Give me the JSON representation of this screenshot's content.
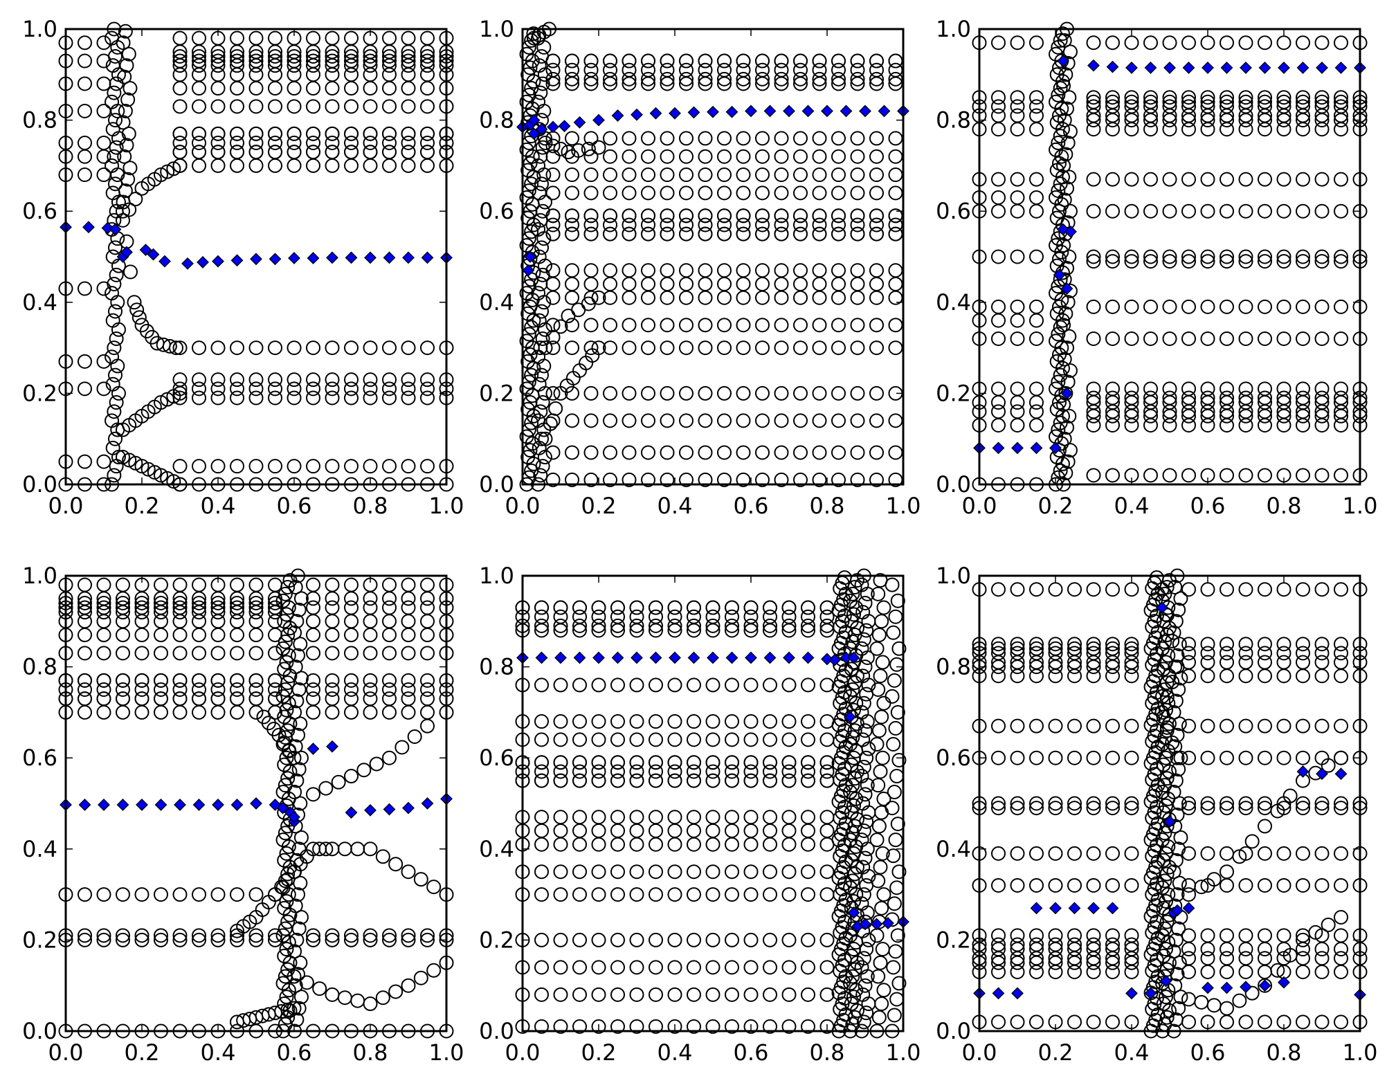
{
  "figure": {
    "layout": "2x3 grid of scatter plots"
  },
  "colors": {
    "circle_edge": "#000000",
    "circle_fill": "none",
    "diamond_fill": "#0000ee",
    "diamond_edge": "#000000"
  },
  "tick_labels": {
    "x": [
      "0.0",
      "0.2",
      "0.4",
      "0.6",
      "0.8",
      "1.0"
    ],
    "y": [
      "0.0",
      "0.2",
      "0.4",
      "0.6",
      "0.8",
      "1.0"
    ]
  },
  "chart_data": [
    {
      "type": "scatter",
      "xlim": [
        0,
        1
      ],
      "ylim": [
        0,
        1
      ],
      "x_ticks": [
        0,
        0.2,
        0.4,
        0.6,
        0.8,
        1.0
      ],
      "y_ticks": [
        0,
        0.2,
        0.4,
        0.6,
        0.8,
        1.0
      ],
      "grid": false,
      "circle_levels": [
        0.0,
        0.21,
        0.3,
        0.7,
        0.73,
        0.75,
        0.77,
        0.83,
        0.87,
        0.9,
        0.93,
        0.95,
        0.98
      ],
      "circle_x_start": 0.3,
      "circle_spread": [
        [
          0.0,
          0.04
        ],
        [
          0.21,
          0.02
        ],
        [
          0.75,
          0.02
        ],
        [
          0.93,
          0.01
        ]
      ],
      "circle_left_levels": [
        0.0,
        0.05,
        0.21,
        0.27,
        0.43,
        0.68,
        0.72,
        0.75,
        0.82,
        0.88,
        0.93,
        0.97
      ],
      "circle_left_x": [
        0.0,
        0.05,
        0.1
      ],
      "dense_columns": [
        {
          "x": 0.13,
          "y_from": 0.0,
          "y_to": 1.0,
          "step": 0.02
        },
        {
          "x": 0.16,
          "y_from": 0.62,
          "y_to": 1.0,
          "step": 0.025
        }
      ],
      "circle_arcs": [
        [
          [
            0.15,
            0.6
          ],
          [
            0.18,
            0.4
          ],
          [
            0.2,
            0.35
          ],
          [
            0.24,
            0.31
          ],
          [
            0.29,
            0.3
          ]
        ],
        [
          [
            0.15,
            0.58
          ],
          [
            0.2,
            0.65
          ],
          [
            0.25,
            0.68
          ],
          [
            0.3,
            0.7
          ]
        ],
        [
          [
            0.15,
            0.12
          ],
          [
            0.2,
            0.15
          ],
          [
            0.25,
            0.18
          ],
          [
            0.3,
            0.2
          ]
        ],
        [
          [
            0.15,
            0.06
          ],
          [
            0.2,
            0.04
          ],
          [
            0.25,
            0.02
          ],
          [
            0.3,
            0.0
          ]
        ]
      ],
      "diamond_x": [
        0.0,
        0.06,
        0.11,
        0.13,
        0.15,
        0.16,
        0.21,
        0.23,
        0.26,
        0.32,
        0.36,
        0.4,
        0.45,
        0.5,
        0.55,
        0.6,
        0.65,
        0.7,
        0.75,
        0.8,
        0.85,
        0.9,
        0.95,
        1.0
      ],
      "diamond_y": [
        0.565,
        0.565,
        0.563,
        0.56,
        0.5,
        0.51,
        0.515,
        0.505,
        0.49,
        0.485,
        0.488,
        0.49,
        0.492,
        0.495,
        0.495,
        0.497,
        0.497,
        0.498,
        0.498,
        0.498,
        0.498,
        0.498,
        0.498,
        0.498
      ]
    },
    {
      "type": "scatter",
      "xlim": [
        0,
        1
      ],
      "ylim": [
        0,
        1
      ],
      "x_ticks": [
        0,
        0.2,
        0.4,
        0.6,
        0.8,
        1.0
      ],
      "y_ticks": [
        0,
        0.2,
        0.4,
        0.6,
        0.8,
        1.0
      ],
      "grid": false,
      "circle_levels": [
        0.01,
        0.07,
        0.14,
        0.2,
        0.3,
        0.35,
        0.41,
        0.44,
        0.47,
        0.55,
        0.57,
        0.59,
        0.64,
        0.68,
        0.72,
        0.76,
        0.88,
        0.91,
        0.93
      ],
      "circle_x_start": 0.08,
      "circle_spread": [
        [
          0.57,
          0.02
        ],
        [
          0.91,
          0.02
        ]
      ],
      "circle_left_levels": [],
      "circle_left_x": [],
      "dense_columns": [
        {
          "x": 0.02,
          "y_from": 0.0,
          "y_to": 1.0,
          "step": 0.015
        },
        {
          "x": 0.05,
          "y_from": 0.0,
          "y_to": 0.98,
          "step": 0.02
        }
      ],
      "circle_arcs": [
        [
          [
            0.06,
            0.1
          ],
          [
            0.1,
            0.2
          ],
          [
            0.15,
            0.25
          ],
          [
            0.2,
            0.3
          ]
        ],
        [
          [
            0.06,
            0.3
          ],
          [
            0.12,
            0.37
          ],
          [
            0.2,
            0.41
          ]
        ],
        [
          [
            0.06,
            0.75
          ],
          [
            0.12,
            0.73
          ],
          [
            0.2,
            0.74
          ]
        ],
        [
          [
            0.03,
            0.98
          ],
          [
            0.07,
            1.0
          ]
        ]
      ],
      "diamond_x": [
        0.0,
        0.02,
        0.03,
        0.05,
        0.08,
        0.11,
        0.15,
        0.2,
        0.25,
        0.3,
        0.35,
        0.4,
        0.45,
        0.5,
        0.55,
        0.6,
        0.65,
        0.7,
        0.75,
        0.8,
        0.85,
        0.9,
        0.95,
        1.0,
        0.03,
        0.02,
        0.015
      ],
      "diamond_y": [
        0.785,
        0.79,
        0.8,
        0.78,
        0.785,
        0.787,
        0.795,
        0.8,
        0.81,
        0.812,
        0.815,
        0.815,
        0.817,
        0.818,
        0.818,
        0.82,
        0.82,
        0.82,
        0.82,
        0.82,
        0.82,
        0.82,
        0.82,
        0.82,
        0.77,
        0.5,
        0.47
      ]
    },
    {
      "type": "scatter",
      "xlim": [
        0,
        1
      ],
      "ylim": [
        0,
        1
      ],
      "x_ticks": [
        0,
        0.2,
        0.4,
        0.6,
        0.8,
        1.0
      ],
      "y_ticks": [
        0,
        0.2,
        0.4,
        0.6,
        0.8,
        1.0
      ],
      "grid": false,
      "circle_levels": [
        0.02,
        0.13,
        0.16,
        0.18,
        0.21,
        0.32,
        0.39,
        0.49,
        0.5,
        0.6,
        0.67,
        0.78,
        0.81,
        0.83,
        0.85,
        0.97
      ],
      "circle_x_start": 0.3,
      "circle_spread": [
        [
          0.17,
          0.02
        ],
        [
          0.82,
          0.02
        ]
      ],
      "circle_left_levels": [
        0.0,
        0.13,
        0.16,
        0.18,
        0.21,
        0.32,
        0.36,
        0.39,
        0.5,
        0.6,
        0.63,
        0.67,
        0.78,
        0.81,
        0.83,
        0.85,
        0.97
      ],
      "circle_left_x": [
        0.0,
        0.05,
        0.1,
        0.15
      ],
      "dense_columns": [
        {
          "x": 0.21,
          "y_from": 0.0,
          "y_to": 1.0,
          "step": 0.015
        },
        {
          "x": 0.23,
          "y_from": 0.0,
          "y_to": 1.0,
          "step": 0.025
        }
      ],
      "circle_arcs": [],
      "diamond_x": [
        0.0,
        0.05,
        0.1,
        0.15,
        0.2,
        0.22,
        0.22,
        0.23,
        0.21,
        0.24,
        0.23,
        0.3,
        0.35,
        0.4,
        0.45,
        0.5,
        0.55,
        0.6,
        0.65,
        0.7,
        0.75,
        0.8,
        0.85,
        0.9,
        0.95,
        1.0
      ],
      "diamond_y": [
        0.08,
        0.08,
        0.08,
        0.08,
        0.08,
        0.93,
        0.56,
        0.43,
        0.46,
        0.555,
        0.2,
        0.92,
        0.917,
        0.915,
        0.915,
        0.915,
        0.915,
        0.915,
        0.915,
        0.915,
        0.915,
        0.915,
        0.915,
        0.915,
        0.915,
        0.915
      ]
    },
    {
      "type": "scatter",
      "xlim": [
        0,
        1
      ],
      "ylim": [
        0,
        1
      ],
      "x_ticks": [
        0,
        0.2,
        0.4,
        0.6,
        0.8,
        1.0
      ],
      "y_ticks": [
        0,
        0.2,
        0.4,
        0.6,
        0.8,
        1.0
      ],
      "grid": false,
      "circle_levels": [
        0.0,
        0.2,
        0.21,
        0.3,
        0.7,
        0.73,
        0.75,
        0.77,
        0.83,
        0.87,
        0.9,
        0.93,
        0.95,
        0.98
      ],
      "circle_x_start": 0.0,
      "circle_x_end": 0.55,
      "circle_spread": [
        [
          0.75,
          0.02
        ],
        [
          0.93,
          0.01
        ]
      ],
      "circle_left_levels": [
        0.0,
        0.2,
        0.21,
        0.7,
        0.73,
        0.75,
        0.77,
        0.83,
        0.87,
        0.9,
        0.93,
        0.95,
        0.98
      ],
      "circle_left_x": [
        0.65,
        0.7,
        0.75,
        0.8,
        0.85,
        0.9,
        0.95,
        1.0
      ],
      "dense_columns": [
        {
          "x": 0.58,
          "y_from": 0.0,
          "y_to": 1.0,
          "step": 0.015
        },
        {
          "x": 0.61,
          "y_from": 0.0,
          "y_to": 1.0,
          "step": 0.025
        }
      ],
      "circle_arcs": [
        [
          [
            0.45,
            0.22
          ],
          [
            0.5,
            0.25
          ],
          [
            0.55,
            0.3
          ],
          [
            0.6,
            0.35
          ]
        ],
        [
          [
            0.45,
            0.02
          ],
          [
            0.5,
            0.03
          ],
          [
            0.55,
            0.04
          ],
          [
            0.6,
            0.05
          ]
        ],
        [
          [
            0.6,
            0.35
          ],
          [
            0.65,
            0.4
          ],
          [
            0.7,
            0.4
          ],
          [
            0.8,
            0.4
          ],
          [
            0.9,
            0.35
          ],
          [
            1.0,
            0.3
          ]
        ],
        [
          [
            0.6,
            0.12
          ],
          [
            0.7,
            0.08
          ],
          [
            0.8,
            0.06
          ],
          [
            0.9,
            0.1
          ],
          [
            1.0,
            0.15
          ]
        ],
        [
          [
            0.65,
            0.52
          ],
          [
            0.75,
            0.56
          ],
          [
            0.85,
            0.6
          ],
          [
            0.95,
            0.67
          ]
        ],
        [
          [
            0.52,
            0.69
          ],
          [
            0.56,
            0.65
          ],
          [
            0.6,
            0.6
          ]
        ]
      ],
      "diamond_x": [
        0.0,
        0.05,
        0.1,
        0.15,
        0.2,
        0.25,
        0.3,
        0.35,
        0.4,
        0.45,
        0.5,
        0.55,
        0.57,
        0.59,
        0.6,
        0.6,
        0.65,
        0.7,
        0.75,
        0.8,
        0.85,
        0.9,
        0.95,
        1.0
      ],
      "diamond_y": [
        0.497,
        0.497,
        0.497,
        0.497,
        0.497,
        0.497,
        0.497,
        0.497,
        0.497,
        0.497,
        0.5,
        0.497,
        0.49,
        0.48,
        0.46,
        0.47,
        0.62,
        0.625,
        0.48,
        0.485,
        0.487,
        0.49,
        0.5,
        0.51
      ]
    },
    {
      "type": "scatter",
      "xlim": [
        0,
        1
      ],
      "ylim": [
        0,
        1
      ],
      "x_ticks": [
        0,
        0.2,
        0.4,
        0.6,
        0.8,
        1.0
      ],
      "y_ticks": [
        0,
        0.2,
        0.4,
        0.6,
        0.8,
        1.0
      ],
      "grid": false,
      "circle_levels": [
        0.01,
        0.08,
        0.14,
        0.2,
        0.3,
        0.35,
        0.41,
        0.44,
        0.47,
        0.55,
        0.57,
        0.59,
        0.64,
        0.68,
        0.76,
        0.88,
        0.91,
        0.93
      ],
      "circle_x_start": 0.0,
      "circle_x_end": 0.8,
      "circle_spread": [
        [
          0.57,
          0.02
        ],
        [
          0.91,
          0.02
        ]
      ],
      "circle_left_levels": [],
      "circle_left_x": [],
      "dense_columns": [
        {
          "x": 0.84,
          "y_from": 0.0,
          "y_to": 1.0,
          "step": 0.012
        },
        {
          "x": 0.87,
          "y_from": 0.0,
          "y_to": 1.0,
          "step": 0.015
        },
        {
          "x": 0.9,
          "y_from": 0.0,
          "y_to": 1.0,
          "step": 0.02
        },
        {
          "x": 0.94,
          "y_from": 0.0,
          "y_to": 1.0,
          "step": 0.03
        },
        {
          "x": 0.98,
          "y_from": 0.0,
          "y_to": 1.0,
          "step": 0.035
        }
      ],
      "circle_arcs": [],
      "diamond_x": [
        0.0,
        0.05,
        0.1,
        0.15,
        0.2,
        0.25,
        0.3,
        0.35,
        0.4,
        0.45,
        0.5,
        0.55,
        0.6,
        0.65,
        0.7,
        0.75,
        0.8,
        0.82,
        0.85,
        0.87,
        0.86,
        0.87,
        0.88,
        0.9,
        0.93,
        0.96,
        1.0
      ],
      "diamond_y": [
        0.82,
        0.82,
        0.82,
        0.82,
        0.82,
        0.82,
        0.82,
        0.82,
        0.82,
        0.82,
        0.82,
        0.82,
        0.82,
        0.82,
        0.82,
        0.82,
        0.817,
        0.815,
        0.82,
        0.82,
        0.69,
        0.26,
        0.23,
        0.235,
        0.235,
        0.237,
        0.24
      ]
    },
    {
      "type": "scatter",
      "xlim": [
        0,
        1
      ],
      "ylim": [
        0,
        1
      ],
      "x_ticks": [
        0,
        0.2,
        0.4,
        0.6,
        0.8,
        1.0
      ],
      "y_ticks": [
        0,
        0.2,
        0.4,
        0.6,
        0.8,
        1.0
      ],
      "grid": false,
      "circle_levels": [
        0.02,
        0.13,
        0.16,
        0.18,
        0.21,
        0.32,
        0.39,
        0.49,
        0.5,
        0.6,
        0.67,
        0.78,
        0.81,
        0.83,
        0.85,
        0.97
      ],
      "circle_x_start": 0.0,
      "circle_x_end": 0.42,
      "circle_spread": [
        [
          0.17,
          0.02
        ],
        [
          0.82,
          0.02
        ]
      ],
      "circle_left_levels": [
        0.02,
        0.13,
        0.16,
        0.18,
        0.21,
        0.32,
        0.39,
        0.49,
        0.5,
        0.6,
        0.67,
        0.78,
        0.81,
        0.83,
        0.85,
        0.97
      ],
      "circle_left_x": [
        0.55,
        0.6,
        0.65,
        0.7,
        0.75,
        0.8,
        0.85,
        0.9,
        0.95,
        1.0
      ],
      "dense_columns": [
        {
          "x": 0.46,
          "y_from": 0.0,
          "y_to": 1.0,
          "step": 0.012
        },
        {
          "x": 0.49,
          "y_from": 0.0,
          "y_to": 1.0,
          "step": 0.015
        },
        {
          "x": 0.52,
          "y_from": 0.0,
          "y_to": 1.0,
          "step": 0.025
        }
      ],
      "circle_arcs": [
        [
          [
            0.55,
            0.3
          ],
          [
            0.65,
            0.35
          ],
          [
            0.75,
            0.45
          ],
          [
            0.85,
            0.55
          ],
          [
            0.95,
            0.6
          ]
        ],
        [
          [
            0.55,
            0.07
          ],
          [
            0.65,
            0.05
          ],
          [
            0.75,
            0.1
          ],
          [
            0.85,
            0.2
          ],
          [
            0.95,
            0.25
          ]
        ],
        [
          [
            0.48,
            0.97
          ],
          [
            0.52,
            0.8
          ],
          [
            0.48,
            0.7
          ],
          [
            0.52,
            0.6
          ]
        ]
      ],
      "diamond_x": [
        0.0,
        0.05,
        0.1,
        0.15,
        0.2,
        0.25,
        0.3,
        0.35,
        0.4,
        0.45,
        0.48,
        0.49,
        0.5,
        0.51,
        0.52,
        0.55,
        0.6,
        0.65,
        0.7,
        0.75,
        0.8,
        0.85,
        0.9,
        0.95,
        1.0
      ],
      "diamond_y": [
        0.083,
        0.083,
        0.083,
        0.27,
        0.27,
        0.27,
        0.27,
        0.27,
        0.083,
        0.083,
        0.93,
        0.11,
        0.46,
        0.26,
        0.265,
        0.27,
        0.095,
        0.095,
        0.097,
        0.1,
        0.107,
        0.57,
        0.565,
        0.565,
        0.08
      ]
    }
  ]
}
